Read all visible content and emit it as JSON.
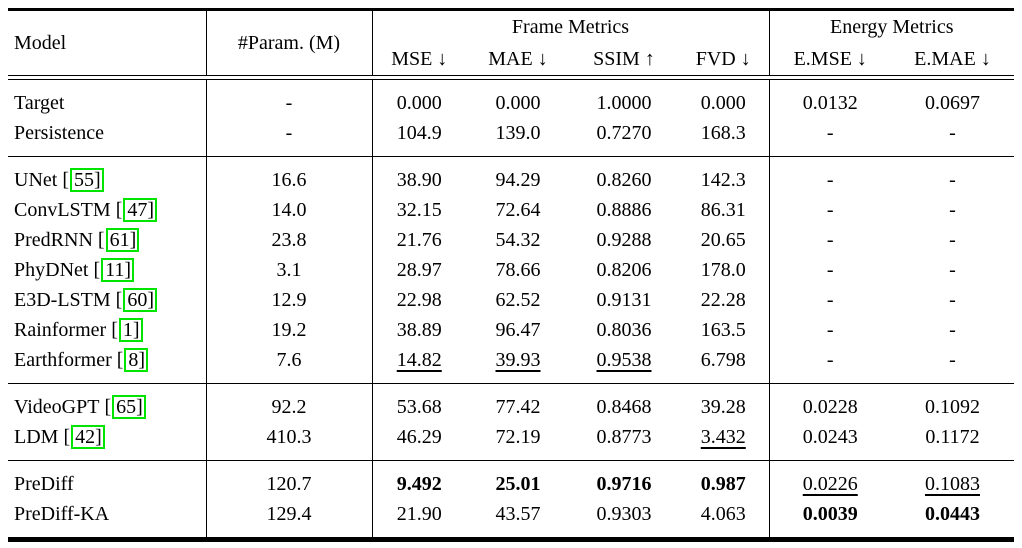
{
  "colors": {
    "citation_green": "#00e400",
    "rule_black": "#000000"
  },
  "header": {
    "model": "Model",
    "param": "#Param. (M)",
    "frame_group": "Frame Metrics",
    "energy_group": "Energy Metrics",
    "mse": "MSE ↓",
    "mae": "MAE ↓",
    "ssim": "SSIM ↑",
    "fvd": "FVD ↓",
    "emse": "E.MSE ↓",
    "emae": "E.MAE ↓"
  },
  "groups": [
    {
      "rows": [
        {
          "model": "Target",
          "param": "-",
          "mse": "0.000",
          "mae": "0.000",
          "ssim": "1.0000",
          "fvd": "0.000",
          "emse": "0.0132",
          "emae": "0.0697"
        },
        {
          "model": "Persistence",
          "param": "-",
          "mse": "104.9",
          "mae": "139.0",
          "ssim": "0.7270",
          "fvd": "168.3",
          "emse": "-",
          "emae": "-"
        }
      ]
    },
    {
      "rows": [
        {
          "model": "UNet",
          "cite": "55",
          "param": "16.6",
          "mse": "38.90",
          "mae": "94.29",
          "ssim": "0.8260",
          "fvd": "142.3",
          "emse": "-",
          "emae": "-"
        },
        {
          "model": "ConvLSTM",
          "cite": "47",
          "param": "14.0",
          "mse": "32.15",
          "mae": "72.64",
          "ssim": "0.8886",
          "fvd": "86.31",
          "emse": "-",
          "emae": "-"
        },
        {
          "model": "PredRNN",
          "cite": "61",
          "param": "23.8",
          "mse": "21.76",
          "mae": "54.32",
          "ssim": "0.9288",
          "fvd": "20.65",
          "emse": "-",
          "emae": "-"
        },
        {
          "model": "PhyDNet",
          "cite": "11",
          "param": "3.1",
          "mse": "28.97",
          "mae": "78.66",
          "ssim": "0.8206",
          "fvd": "178.0",
          "emse": "-",
          "emae": "-"
        },
        {
          "model": "E3D-LSTM",
          "cite": "60",
          "param": "12.9",
          "mse": "22.98",
          "mae": "62.52",
          "ssim": "0.9131",
          "fvd": "22.28",
          "emse": "-",
          "emae": "-"
        },
        {
          "model": "Rainformer",
          "cite": "1",
          "param": "19.2",
          "mse": "38.89",
          "mae": "96.47",
          "ssim": "0.8036",
          "fvd": "163.5",
          "emse": "-",
          "emae": "-"
        },
        {
          "model": "Earthformer",
          "cite": "8",
          "param": "7.6",
          "mse": "14.82",
          "mae": "39.93",
          "ssim": "0.9538",
          "fvd": "6.798",
          "emse": "-",
          "emae": "-"
        }
      ]
    },
    {
      "rows": [
        {
          "model": "VideoGPT",
          "cite": "65",
          "param": "92.2",
          "mse": "53.68",
          "mae": "77.42",
          "ssim": "0.8468",
          "fvd": "39.28",
          "emse": "0.0228",
          "emae": "0.1092"
        },
        {
          "model": "LDM",
          "cite": "42",
          "param": "410.3",
          "mse": "46.29",
          "mae": "72.19",
          "ssim": "0.8773",
          "fvd": "3.432",
          "emse": "0.0243",
          "emae": "0.1172"
        }
      ]
    },
    {
      "rows": [
        {
          "model": "PreDiff",
          "param": "120.7",
          "mse": "9.492",
          "mae": "25.01",
          "ssim": "0.9716",
          "fvd": "0.987",
          "emse": "0.0226",
          "emae": "0.1083"
        },
        {
          "model": "PreDiff-KA",
          "param": "129.4",
          "mse": "21.90",
          "mae": "43.57",
          "ssim": "0.9303",
          "fvd": "4.063",
          "emse": "0.0039",
          "emae": "0.0443"
        }
      ]
    }
  ]
}
